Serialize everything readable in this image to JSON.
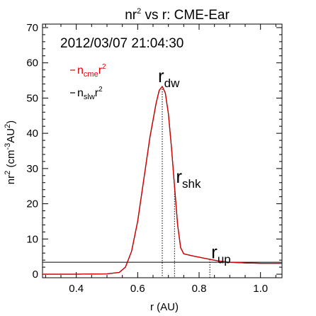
{
  "chart_data": {
    "type": "line",
    "title": {
      "base": "nr",
      "sup": "2",
      "rest": " vs r: CME-Ear"
    },
    "xlabel": "r (AU)",
    "ylabel": {
      "base": "nr",
      "sup": "2",
      "rest": " (cm",
      "sup2": "-3",
      "rest2": "AU",
      "sup3": "2",
      "end": ")"
    },
    "xlim": [
      0.29,
      1.07
    ],
    "ylim": [
      -1,
      71
    ],
    "xticks": [
      0.4,
      0.6,
      0.8,
      1.0
    ],
    "xtick_labels": [
      "0.4",
      "0.6",
      "0.8",
      "1.0"
    ],
    "yticks": [
      0,
      10,
      20,
      30,
      40,
      50,
      60,
      70
    ],
    "ytick_labels": [
      "0",
      "10",
      "20",
      "30",
      "40",
      "50",
      "60",
      "70"
    ],
    "grid": false,
    "legend_position": "top-left",
    "date_label": "2012/03/07 21:04:30",
    "series": [
      {
        "legend_base": "n",
        "legend_sub": "cme",
        "legend_base2": "r",
        "legend_sup": "2",
        "color": "#dd0000",
        "x": [
          0.29,
          0.4,
          0.5,
          0.54,
          0.56,
          0.58,
          0.6,
          0.62,
          0.64,
          0.66,
          0.67,
          0.68,
          0.69,
          0.7,
          0.71,
          0.72,
          0.73,
          0.74,
          0.75,
          0.78,
          0.82,
          0.86,
          0.9,
          0.95,
          1.0,
          1.07
        ],
        "y": [
          0.0,
          0.0,
          0.1,
          0.5,
          2.0,
          6.5,
          15.0,
          27.0,
          39.0,
          48.5,
          52.2,
          53.3,
          51.5,
          45.5,
          36.0,
          25.0,
          14.0,
          7.5,
          5.8,
          5.2,
          4.5,
          3.8,
          3.4,
          3.2,
          3.1,
          3.1
        ]
      },
      {
        "legend_base": "n",
        "legend_sub": "slw",
        "legend_base2": "r",
        "legend_sup": "2",
        "color": "#000000",
        "x": [
          0.29,
          0.4,
          0.5,
          0.54,
          0.56,
          0.58,
          0.6,
          0.62,
          0.64,
          0.66,
          0.67,
          0.68,
          0.69,
          0.7,
          0.71,
          0.72,
          0.73,
          0.74,
          0.75,
          0.78,
          0.82,
          0.86,
          0.9,
          0.95,
          1.0,
          1.07
        ],
        "y": [
          0.0,
          0.0,
          0.1,
          0.5,
          2.0,
          6.5,
          15.0,
          27.0,
          39.0,
          48.5,
          52.2,
          53.3,
          51.5,
          45.5,
          36.0,
          25.0,
          14.0,
          7.5,
          5.8,
          5.2,
          4.5,
          3.8,
          3.4,
          3.2,
          3.1,
          3.1
        ]
      }
    ],
    "reference_line": {
      "y": 3.4
    },
    "markers": [
      {
        "label_base": "r",
        "label_sub": "dw",
        "x": 0.68,
        "y_text": 54.5
      },
      {
        "label_base": "r",
        "label_sub": "shk",
        "x": 0.72,
        "y_text": 26.0
      },
      {
        "label_base": "r",
        "label_sub": "up",
        "x": 0.835,
        "y_text": 4.5
      }
    ]
  }
}
